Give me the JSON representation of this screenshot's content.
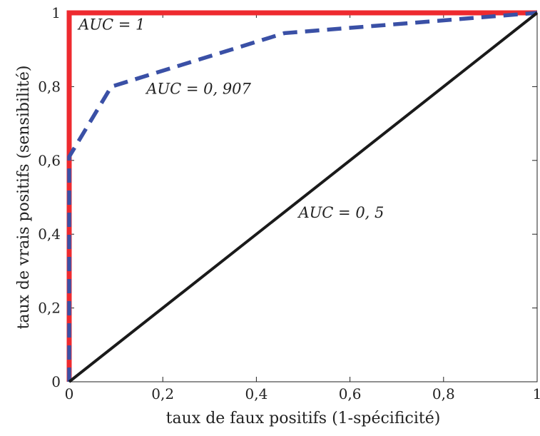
{
  "chart_data": {
    "type": "line",
    "xlabel": "taux de faux positifs (1-spécificité)",
    "ylabel": "taux de vrais positifs (sensibilité)",
    "xlim": [
      0,
      1
    ],
    "ylim": [
      0,
      1
    ],
    "grid": false,
    "x_ticks": [
      {
        "value": 0,
        "label": "0"
      },
      {
        "value": 0.2,
        "label": "0,2"
      },
      {
        "value": 0.4,
        "label": "0,4"
      },
      {
        "value": 0.6,
        "label": "0,6"
      },
      {
        "value": 0.8,
        "label": "0,8"
      },
      {
        "value": 1,
        "label": "1"
      }
    ],
    "y_ticks": [
      {
        "value": 0,
        "label": "0"
      },
      {
        "value": 0.2,
        "label": "0,2"
      },
      {
        "value": 0.4,
        "label": "0,4"
      },
      {
        "value": 0.6,
        "label": "0,6"
      },
      {
        "value": 0.8,
        "label": "0,8"
      },
      {
        "value": 1,
        "label": "1"
      }
    ],
    "series": [
      {
        "color": "#ee2a2f",
        "style": "solid",
        "x": [
          0,
          0,
          1
        ],
        "y": [
          0,
          1,
          1
        ]
      },
      {
        "color": "#3a50a6",
        "style": "dashed",
        "x": [
          0,
          0,
          0.09,
          0.46,
          1
        ],
        "y": [
          0,
          0.61,
          0.8,
          0.945,
          1
        ]
      },
      {
        "color": "#1a1a1a",
        "style": "solid",
        "x": [
          0,
          1
        ],
        "y": [
          0,
          1
        ]
      }
    ],
    "annotations": [
      {
        "text": "AUC = 1",
        "x": 0.02,
        "y": 0.955
      },
      {
        "text": "AUC = 0, 907",
        "x": 0.165,
        "y": 0.78
      },
      {
        "text": "AUC = 0, 5",
        "x": 0.49,
        "y": 0.445
      }
    ]
  }
}
